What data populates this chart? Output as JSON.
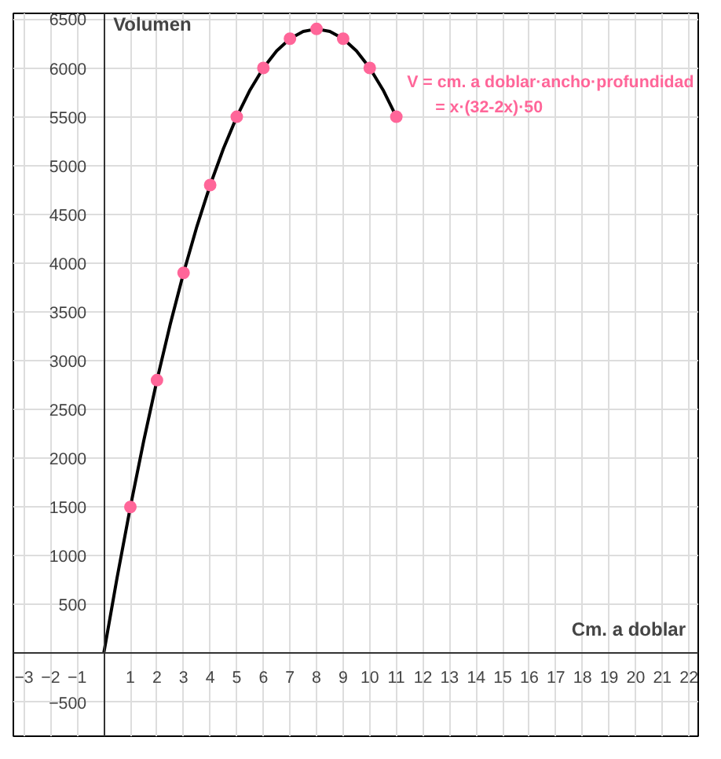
{
  "chart_data": {
    "type": "line",
    "xlabel": "Cm. a doblar",
    "ylabel": "Volumen",
    "annotations": [
      "V = cm. a doblar·ancho·profundidad",
      "= x·(32-2x)·50"
    ],
    "series": [
      {
        "marker": "none",
        "color": "#000000",
        "x": [
          0,
          0.5,
          1,
          1.5,
          2,
          2.5,
          3,
          3.5,
          4,
          4.5,
          5,
          5.5,
          6,
          6.5,
          7,
          7.5,
          8,
          8.5,
          9,
          9.5,
          10,
          10.5,
          11
        ],
        "values": [
          0,
          775,
          1500,
          2175,
          2800,
          3375,
          3900,
          4375,
          4800,
          5175,
          5500,
          5775,
          6000,
          6175,
          6300,
          6375,
          6400,
          6375,
          6300,
          6175,
          6000,
          5775,
          5500
        ]
      },
      {
        "type": "scatter",
        "color": "#ff6699",
        "x": [
          1,
          2,
          3,
          4,
          5,
          6,
          7,
          8,
          9,
          10,
          11
        ],
        "values": [
          1500,
          2800,
          3900,
          4800,
          5500,
          6000,
          6300,
          6400,
          6300,
          6000,
          5500
        ]
      }
    ],
    "xlim": [
      -3.4,
      22.35
    ],
    "ylim": [
      -850,
      6560
    ],
    "xticks": [
      -3,
      -2,
      -1,
      1,
      2,
      3,
      4,
      5,
      6,
      7,
      8,
      9,
      10,
      11,
      12,
      13,
      14,
      15,
      16,
      17,
      18,
      19,
      20,
      21,
      22
    ],
    "yticks": [
      -500,
      500,
      1000,
      1500,
      2000,
      2500,
      3000,
      3500,
      4000,
      4500,
      5000,
      5500,
      6000,
      6500
    ],
    "grid": true,
    "marker": "circle",
    "line_style": "solid"
  }
}
